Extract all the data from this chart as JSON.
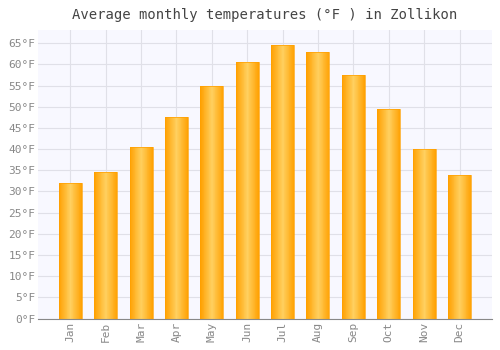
{
  "title": "Average monthly temperatures (°F ) in Zollikon",
  "months": [
    "Jan",
    "Feb",
    "Mar",
    "Apr",
    "May",
    "Jun",
    "Jul",
    "Aug",
    "Sep",
    "Oct",
    "Nov",
    "Dec"
  ],
  "values": [
    32,
    34.5,
    40.5,
    47.5,
    55,
    60.5,
    64.5,
    63,
    57.5,
    49.5,
    40,
    34
  ],
  "bar_color_center": "#FFD060",
  "bar_color_edge": "#FFA000",
  "ylim": [
    0,
    68
  ],
  "yticks": [
    0,
    5,
    10,
    15,
    20,
    25,
    30,
    35,
    40,
    45,
    50,
    55,
    60,
    65
  ],
  "ytick_labels": [
    "0°F",
    "5°F",
    "10°F",
    "15°F",
    "20°F",
    "25°F",
    "30°F",
    "35°F",
    "40°F",
    "45°F",
    "50°F",
    "55°F",
    "60°F",
    "65°F"
  ],
  "background_color": "#ffffff",
  "plot_bg_color": "#f8f8ff",
  "grid_color": "#e0e0e8",
  "title_fontsize": 10,
  "tick_fontsize": 8,
  "tick_color": "#888888",
  "font_family": "monospace",
  "bar_width": 0.65
}
